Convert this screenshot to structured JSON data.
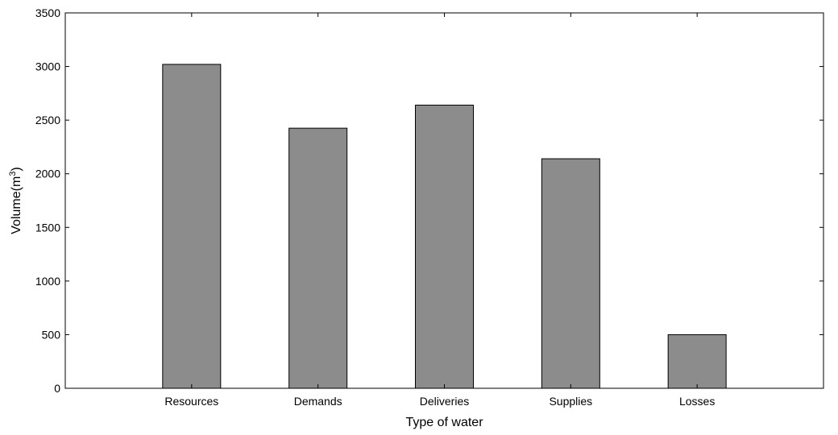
{
  "chart_data": {
    "type": "bar",
    "categories": [
      "Resources",
      "Demands",
      "Deliveries",
      "Supplies",
      "Losses"
    ],
    "values": [
      3020,
      2425,
      2640,
      2140,
      500
    ],
    "xlabel": "Type of water",
    "ylabel": {
      "prefix": "Volume(m",
      "superscript": "3",
      "suffix": ")"
    },
    "ylim": [
      0,
      3500
    ],
    "yticks": [
      0,
      500,
      1000,
      1500,
      2000,
      2500,
      3000,
      3500
    ],
    "grid": false,
    "legend": "none",
    "colors": {
      "bar_fill": "#8c8c8c",
      "bar_stroke": "#000000",
      "axis": "#000000",
      "background": "#ffffff"
    }
  }
}
